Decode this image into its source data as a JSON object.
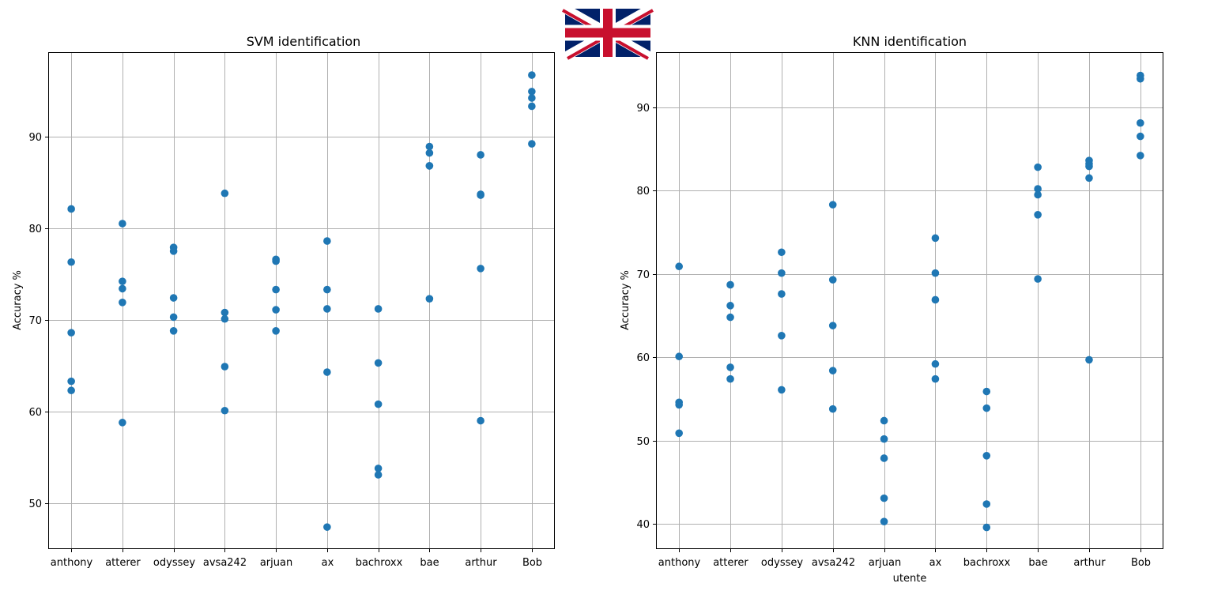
{
  "flag_icon": "union-jack-flag-icon",
  "colors": {
    "marker": "#1f77b4",
    "grid": "#b0b0b0"
  },
  "chart_data": [
    {
      "type": "scatter",
      "title": "SVM identification",
      "xlabel": "",
      "ylabel": "Accuracy %",
      "categories": [
        "anthony",
        "atterer",
        "odyssey",
        "avsa242",
        "arjuan",
        "ax",
        "bachroxx",
        "bae",
        "arthur",
        "Bob"
      ],
      "ylim": [
        45,
        99.2
      ],
      "yticks": [
        50,
        60,
        70,
        80,
        90
      ],
      "grid": true,
      "series": [
        {
          "values": [
            [
              82.1,
              76.3,
              68.6,
              63.3,
              62.3
            ],
            [
              80.5,
              74.2,
              73.4,
              71.9,
              58.8
            ],
            [
              77.9,
              77.5,
              72.4,
              70.3,
              68.8
            ],
            [
              83.8,
              70.8,
              70.1,
              64.9,
              60.1
            ],
            [
              76.6,
              76.4,
              73.3,
              71.1,
              68.8
            ],
            [
              78.6,
              73.3,
              71.2,
              64.3,
              47.4
            ],
            [
              71.2,
              65.3,
              60.8,
              53.8,
              53.1
            ],
            [
              88.9,
              88.2,
              86.8,
              86.8,
              72.3
            ],
            [
              88.0,
              83.7,
              83.6,
              75.6,
              59.0
            ],
            [
              96.7,
              94.9,
              94.2,
              93.3,
              89.2
            ]
          ]
        }
      ]
    },
    {
      "type": "scatter",
      "title": "KNN identification",
      "xlabel": "utente",
      "ylabel": "Accuracy %",
      "categories": [
        "anthony",
        "atterer",
        "odyssey",
        "avsa242",
        "arjuan",
        "ax",
        "bachroxx",
        "bae",
        "arthur",
        "Bob"
      ],
      "ylim": [
        37,
        96.6
      ],
      "yticks": [
        40,
        50,
        60,
        70,
        80,
        90
      ],
      "grid": true,
      "series": [
        {
          "values": [
            [
              70.9,
              60.1,
              54.6,
              54.3,
              50.9
            ],
            [
              68.7,
              66.2,
              64.8,
              58.8,
              57.4
            ],
            [
              72.6,
              70.1,
              67.6,
              62.6,
              56.1
            ],
            [
              78.3,
              69.3,
              63.8,
              58.4,
              53.8
            ],
            [
              52.4,
              50.2,
              47.9,
              43.1,
              40.3
            ],
            [
              74.3,
              70.1,
              66.9,
              59.2,
              57.4
            ],
            [
              55.9,
              53.9,
              48.2,
              42.4,
              39.6
            ],
            [
              82.8,
              80.2,
              79.5,
              77.1,
              69.4
            ],
            [
              83.6,
              83.2,
              82.9,
              81.5,
              59.7
            ],
            [
              93.8,
              93.4,
              88.1,
              86.5,
              84.2
            ]
          ]
        }
      ]
    }
  ]
}
